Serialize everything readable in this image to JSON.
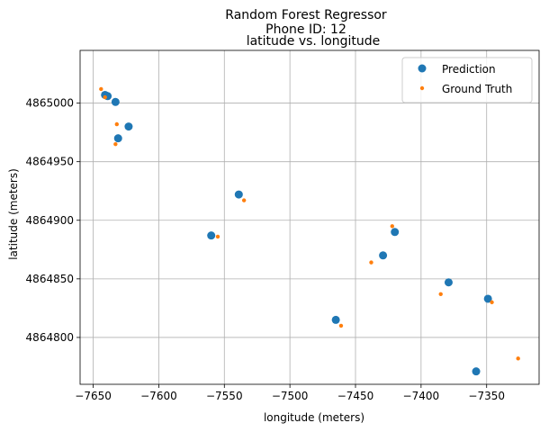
{
  "chart_data": {
    "type": "scatter",
    "title_lines": [
      "Random Forest Regressor",
      "Phone ID: 12"
    ],
    "subtitle": "latitude vs. longitude",
    "xlabel": "longitude (meters)",
    "ylabel": "latitude (meters)",
    "xlim": [
      -7660,
      -7310
    ],
    "ylim": [
      4864760,
      4865045
    ],
    "xticks": [
      -7650,
      -7600,
      -7550,
      -7500,
      -7450,
      -7400,
      -7350
    ],
    "yticks": [
      4864800,
      4864850,
      4864900,
      4864950,
      4865000
    ],
    "xtick_labels": [
      "−7650",
      "−7600",
      "−7550",
      "−7500",
      "−7450",
      "−7400",
      "−7350"
    ],
    "ytick_labels": [
      "4864800",
      "4864850",
      "4864900",
      "4864950",
      "4865000"
    ],
    "grid": true,
    "legend_position": "top-right",
    "series": [
      {
        "name": "Prediction",
        "color": "#1f77b4",
        "marker": "large-dot",
        "points": [
          {
            "x": -7641,
            "y": 4865007
          },
          {
            "x": -7639,
            "y": 4865006
          },
          {
            "x": -7633,
            "y": 4865001
          },
          {
            "x": -7623,
            "y": 4864980
          },
          {
            "x": -7631,
            "y": 4864970
          },
          {
            "x": -7539,
            "y": 4864922
          },
          {
            "x": -7560,
            "y": 4864887
          },
          {
            "x": -7420,
            "y": 4864890
          },
          {
            "x": -7429,
            "y": 4864870
          },
          {
            "x": -7379,
            "y": 4864847
          },
          {
            "x": -7349,
            "y": 4864833
          },
          {
            "x": -7465,
            "y": 4864815
          },
          {
            "x": -7358,
            "y": 4864771
          }
        ]
      },
      {
        "name": "Ground Truth",
        "color": "#ff7f0e",
        "marker": "small-dot",
        "points": [
          {
            "x": -7644,
            "y": 4865012
          },
          {
            "x": -7641,
            "y": 4865005
          },
          {
            "x": -7632,
            "y": 4864982
          },
          {
            "x": -7633,
            "y": 4864965
          },
          {
            "x": -7535,
            "y": 4864917
          },
          {
            "x": -7555,
            "y": 4864886
          },
          {
            "x": -7422,
            "y": 4864895
          },
          {
            "x": -7438,
            "y": 4864864
          },
          {
            "x": -7385,
            "y": 4864837
          },
          {
            "x": -7346,
            "y": 4864830
          },
          {
            "x": -7461,
            "y": 4864810
          },
          {
            "x": -7326,
            "y": 4864782
          }
        ]
      }
    ]
  }
}
